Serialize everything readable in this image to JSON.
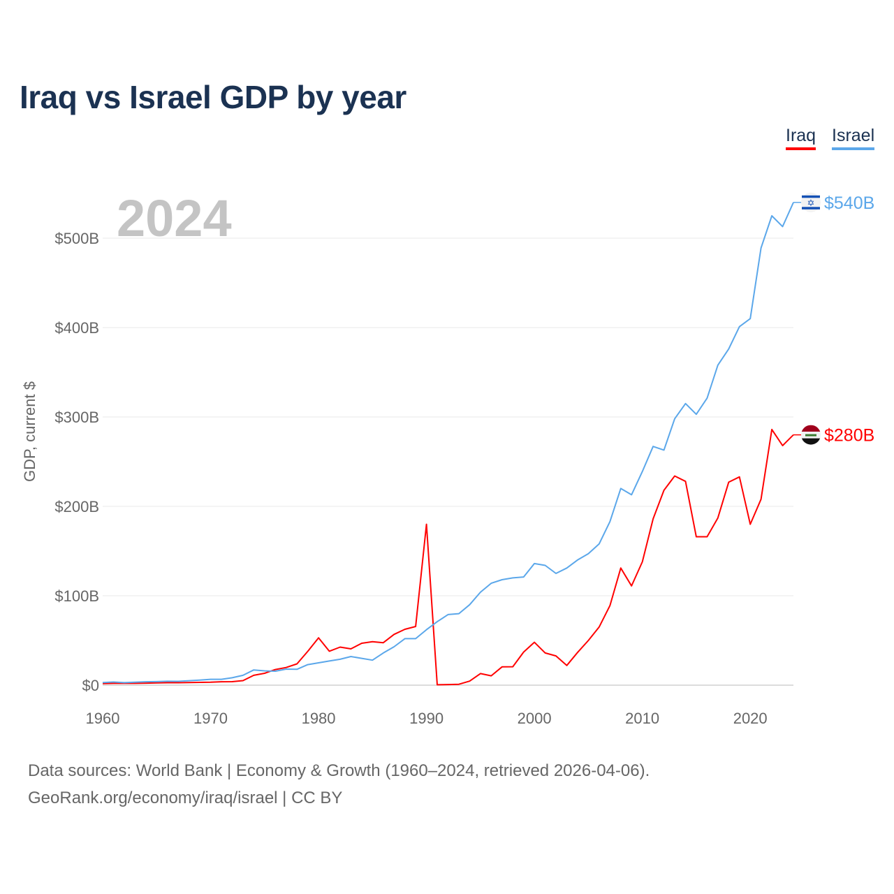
{
  "title": "Iraq vs Israel GDP by year",
  "legend": [
    {
      "name": "Iraq",
      "color": "#ff0000"
    },
    {
      "name": "Israel",
      "color": "#5ba7ea"
    }
  ],
  "footer": {
    "line1": "Data sources: World Bank | Economy & Growth (1960–2024, retrieved 2026-04-06).",
    "line2": "GeoRank.org/economy/iraq/israel | CC BY"
  },
  "chart_data": {
    "type": "line",
    "title": "Iraq vs Israel GDP by year",
    "ylabel": "GDP, current $",
    "xlabel": "",
    "year_watermark": "2024",
    "xlim": [
      1960,
      2024
    ],
    "ylim": [
      0,
      500
    ],
    "x_ticks": [
      "1960",
      "1970",
      "1980",
      "1990",
      "2000",
      "2010",
      "2020"
    ],
    "y_ticks": [
      {
        "v": 0,
        "label": "$0"
      },
      {
        "v": 100,
        "label": "$100B"
      },
      {
        "v": 200,
        "label": "$200B"
      },
      {
        "v": 300,
        "label": "$300B"
      },
      {
        "v": 400,
        "label": "$400B"
      },
      {
        "v": 500,
        "label": "$500B"
      }
    ],
    "units": "billions USD",
    "x_start": 1960,
    "series": [
      {
        "name": "Iraq",
        "color": "#ff0000",
        "end_label": "$280B",
        "flag": "iraq-flag",
        "values": [
          1.7,
          2,
          2,
          2,
          2.3,
          2.5,
          2.7,
          2.7,
          3,
          3.1,
          3.3,
          3.8,
          3.9,
          5.1,
          11,
          13.3,
          17.5,
          19.8,
          23.8,
          37.8,
          53,
          38,
          42.6,
          40.6,
          46.9,
          48.6,
          47.5,
          56.8,
          62.5,
          65.6,
          180,
          0.5,
          0.7,
          1,
          4.5,
          13,
          10.5,
          20.5,
          20.6,
          37,
          48,
          36,
          32.7,
          22,
          36.6,
          50,
          65,
          89,
          131,
          111,
          138,
          186,
          218,
          234,
          228,
          166,
          166,
          187,
          227,
          233,
          180,
          208,
          286,
          268,
          280
        ]
      },
      {
        "name": "Israel",
        "color": "#5ba7ea",
        "end_label": "$540B",
        "flag": "israel-flag",
        "values": [
          3,
          3.5,
          2.8,
          3.3,
          3.8,
          4,
          4.4,
          4.3,
          5,
          5.7,
          6.6,
          6.6,
          8.3,
          11,
          17,
          16,
          15.6,
          18,
          17.7,
          23,
          25,
          27,
          29,
          32,
          30,
          28,
          36,
          43,
          52,
          52,
          62,
          71,
          79,
          80,
          90,
          104,
          114,
          118,
          120,
          121,
          136,
          134,
          125,
          131,
          140,
          147,
          158,
          183,
          220,
          213,
          239,
          267,
          263,
          298,
          315,
          303,
          321,
          358,
          376,
          401,
          410,
          489,
          525,
          513,
          540
        ]
      }
    ]
  }
}
